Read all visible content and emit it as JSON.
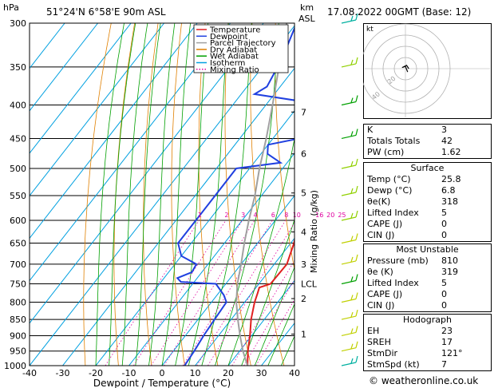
{
  "header": {
    "hpa_label": "hPa",
    "location": "51°24'N  6°58'E  90m  ASL",
    "km_label": "km",
    "asl_label": "ASL",
    "datetime": "17.08.2022  00GMT  (Base: 12)"
  },
  "footer": {
    "copyright": "© weatheronline.co.uk"
  },
  "legend": [
    {
      "name": "Temperature",
      "color": "#e02020",
      "style": "solid"
    },
    {
      "name": "Dewpoint",
      "color": "#2040e0",
      "style": "solid"
    },
    {
      "name": "Parcel Trajectory",
      "color": "#a0a0a0",
      "style": "solid"
    },
    {
      "name": "Dry Adiabat",
      "color": "#e08000",
      "style": "solid"
    },
    {
      "name": "Wet Adiabat",
      "color": "#00a000",
      "style": "solid"
    },
    {
      "name": "Isotherm",
      "color": "#00a0e0",
      "style": "solid"
    },
    {
      "name": "Mixing Ratio",
      "color": "#e000a0",
      "style": "dotted"
    }
  ],
  "chart_data": {
    "type": "line",
    "chart_kind": "skew-T log-p",
    "xlabel": "Dewpoint / Temperature (°C)",
    "ylabel": "hPa",
    "right_axis_label": "Mixing Ratio (g/kg)",
    "xlim": [
      -40,
      40
    ],
    "ylim": [
      1000,
      300
    ],
    "y_scale": "log",
    "x_ticks": [
      "-40",
      "-30",
      "-20",
      "-10",
      "0",
      "10",
      "20",
      "30",
      "40"
    ],
    "pressure_levels": [
      300,
      350,
      400,
      450,
      500,
      550,
      600,
      650,
      700,
      750,
      800,
      850,
      900,
      950,
      1000
    ],
    "km_ticks": [
      {
        "label": "7",
        "p": 410
      },
      {
        "label": "6",
        "p": 475
      },
      {
        "label": "5",
        "p": 545
      },
      {
        "label": "4",
        "p": 625
      },
      {
        "label": "3",
        "p": 700
      },
      {
        "label": "LCL",
        "p": 750
      },
      {
        "label": "2",
        "p": 790
      },
      {
        "label": "1",
        "p": 895
      }
    ],
    "mixing_ratio_labels": [
      "1",
      "2",
      "3",
      "4",
      "6",
      "8",
      "10",
      "16",
      "20",
      "25"
    ],
    "series": [
      {
        "name": "Temperature",
        "color": "#e02020",
        "points": [
          [
            1000,
            25.8
          ],
          [
            950,
            22.5
          ],
          [
            900,
            19.5
          ],
          [
            850,
            16.0
          ],
          [
            800,
            13.0
          ],
          [
            775,
            11.8
          ],
          [
            760,
            11.0
          ],
          [
            750,
            13.5
          ],
          [
            700,
            13.8
          ],
          [
            650,
            11.0
          ],
          [
            600,
            7.0
          ],
          [
            550,
            3.0
          ],
          [
            500,
            -2.5
          ],
          [
            450,
            -8.0
          ],
          [
            400,
            -14.0
          ],
          [
            350,
            -22.0
          ],
          [
            300,
            -32.0
          ]
        ]
      },
      {
        "name": "Dewpoint",
        "color": "#2040e0",
        "points": [
          [
            1000,
            6.8
          ],
          [
            950,
            6.3
          ],
          [
            900,
            5.5
          ],
          [
            850,
            5.0
          ],
          [
            800,
            4.5
          ],
          [
            780,
            2.0
          ],
          [
            750,
            -3.0
          ],
          [
            745,
            -14.0
          ],
          [
            735,
            -16.0
          ],
          [
            720,
            -13.0
          ],
          [
            700,
            -13.5
          ],
          [
            680,
            -20.0
          ],
          [
            650,
            -24.0
          ],
          [
            600,
            -24.0
          ],
          [
            550,
            -24.0
          ],
          [
            500,
            -24.0
          ],
          [
            490,
            -12.0
          ],
          [
            475,
            -18.0
          ],
          [
            460,
            -20.0
          ],
          [
            445,
            -8.0
          ],
          [
            400,
            -12.0
          ],
          [
            385,
            -36.0
          ],
          [
            375,
            -34.0
          ],
          [
            340,
            -36.0
          ],
          [
            300,
            -40.0
          ]
        ]
      },
      {
        "name": "Parcel Trajectory",
        "color": "#a0a0a0",
        "points": [
          [
            1000,
            25.8
          ],
          [
            950,
            21.0
          ],
          [
            900,
            16.5
          ],
          [
            850,
            12.0
          ],
          [
            800,
            7.5
          ],
          [
            750,
            3.5
          ],
          [
            700,
            0.0
          ],
          [
            650,
            -4.0
          ],
          [
            600,
            -8.0
          ],
          [
            550,
            -12.0
          ],
          [
            500,
            -17.0
          ],
          [
            450,
            -22.0
          ],
          [
            400,
            -28.0
          ],
          [
            350,
            -35.0
          ],
          [
            300,
            -43.0
          ]
        ]
      }
    ],
    "indices": [
      {
        "label": "K",
        "value": "3"
      },
      {
        "label": "Totals Totals",
        "value": "42"
      },
      {
        "label": "PW (cm)",
        "value": "1.62"
      }
    ],
    "surface": {
      "title": "Surface",
      "rows": [
        {
          "label": "Temp (°C)",
          "value": "25.8"
        },
        {
          "label": "Dewp (°C)",
          "value": "6.8"
        },
        {
          "label": "θe(K)",
          "value": "318"
        },
        {
          "label": "Lifted Index",
          "value": "5"
        },
        {
          "label": "CAPE (J)",
          "value": "0"
        },
        {
          "label": "CIN (J)",
          "value": "0"
        }
      ]
    },
    "most_unstable": {
      "title": "Most Unstable",
      "rows": [
        {
          "label": "Pressure (mb)",
          "value": "810"
        },
        {
          "label": "θe (K)",
          "value": "319"
        },
        {
          "label": "Lifted Index",
          "value": "5"
        },
        {
          "label": "CAPE (J)",
          "value": "0"
        },
        {
          "label": "CIN (J)",
          "value": "0"
        }
      ]
    },
    "hodograph_table": {
      "title": "Hodograph",
      "rows": [
        {
          "label": "EH",
          "value": "23"
        },
        {
          "label": "SREH",
          "value": "17"
        },
        {
          "label": "StmDir",
          "value": "121°"
        },
        {
          "label": "StmSpd (kt)",
          "value": "7"
        }
      ]
    },
    "hodograph": {
      "unit_label": "kt",
      "ring_labels": [
        "20",
        "40"
      ],
      "trace_color": "#000000",
      "trace_kt": [
        [
          2,
          -3
        ],
        [
          0,
          2
        ],
        [
          -3,
          1
        ],
        [
          1,
          3
        ],
        [
          3,
          0
        ]
      ]
    },
    "wind_barbs": [
      {
        "p": 300,
        "color": "#00b0a0"
      },
      {
        "p": 350,
        "color": "#90d000"
      },
      {
        "p": 400,
        "color": "#00a000"
      },
      {
        "p": 450,
        "color": "#00a000"
      },
      {
        "p": 500,
        "color": "#90d000"
      },
      {
        "p": 550,
        "color": "#90d000"
      },
      {
        "p": 600,
        "color": "#90d000"
      },
      {
        "p": 650,
        "color": "#c0d000"
      },
      {
        "p": 700,
        "color": "#c0d000"
      },
      {
        "p": 750,
        "color": "#00a000"
      },
      {
        "p": 800,
        "color": "#c0d000"
      },
      {
        "p": 850,
        "color": "#c0d000"
      },
      {
        "p": 900,
        "color": "#c0d000"
      },
      {
        "p": 950,
        "color": "#c0d000"
      },
      {
        "p": 1000,
        "color": "#00b0a0"
      }
    ]
  }
}
